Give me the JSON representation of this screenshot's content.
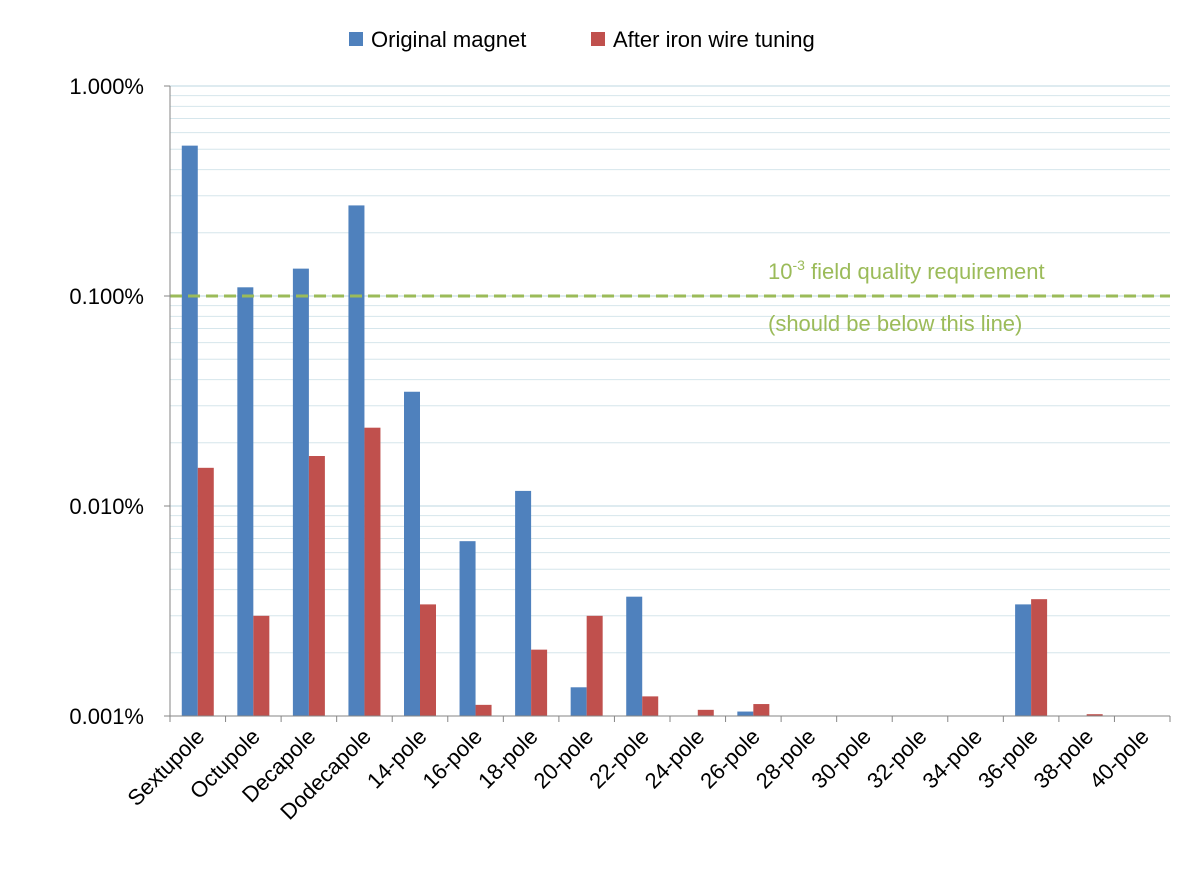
{
  "chart_data": {
    "type": "bar",
    "scale": "log",
    "ylim": [
      0.001,
      1.0
    ],
    "y_ticks": [
      "1.000%",
      "0.100%",
      "0.010%",
      "0.001%"
    ],
    "y_tick_values": [
      1.0,
      0.1,
      0.01,
      0.001
    ],
    "categories": [
      "Sextupole",
      "Octupole",
      "Decapole",
      "Dodecapole",
      "14-pole",
      "16-pole",
      "18-pole",
      "20-pole",
      "22-pole",
      "24-pole",
      "26-pole",
      "28-pole",
      "30-pole",
      "32-pole",
      "34-pole",
      "36-pole",
      "38-pole",
      "40-pole"
    ],
    "series": [
      {
        "name": "Original magnet",
        "color": "#4F81BD",
        "values": [
          0.52,
          0.11,
          0.135,
          0.27,
          0.035,
          0.0068,
          0.0118,
          0.00137,
          0.0037,
          null,
          0.00105,
          null,
          null,
          null,
          null,
          0.0034,
          null,
          null
        ]
      },
      {
        "name": "After iron wire tuning",
        "color": "#C0504D",
        "values": [
          0.0152,
          0.003,
          0.0173,
          0.0236,
          0.0034,
          0.00113,
          0.00207,
          0.003,
          0.00124,
          0.00107,
          0.00114,
          null,
          null,
          null,
          null,
          0.0036,
          0.00102,
          null
        ]
      }
    ],
    "reference_line": {
      "value": 0.1,
      "color": "#9BBB59",
      "style": "dashed",
      "label_base": "10",
      "label_exponent": "-3",
      "label_rest": " field quality requirement",
      "sublabel": "(should be below this line)"
    },
    "legend": "top-center",
    "grid": true
  }
}
